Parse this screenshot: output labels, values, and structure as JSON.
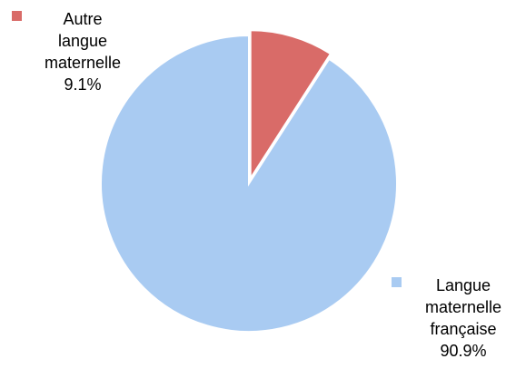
{
  "chart_data": {
    "type": "pie",
    "title": "",
    "slices": [
      {
        "label_lines": [
          "Langue",
          "maternelle",
          "française"
        ],
        "value": 90.9,
        "value_label": "90.9%",
        "color": "#a9cbf2"
      },
      {
        "label_lines": [
          "Autre",
          "langue",
          "maternelle"
        ],
        "value": 9.1,
        "value_label": "9.1%",
        "color": "#d96b68"
      }
    ],
    "start_angle_deg": 0,
    "direction": "counterclockwise",
    "exploded_slice": 1
  }
}
